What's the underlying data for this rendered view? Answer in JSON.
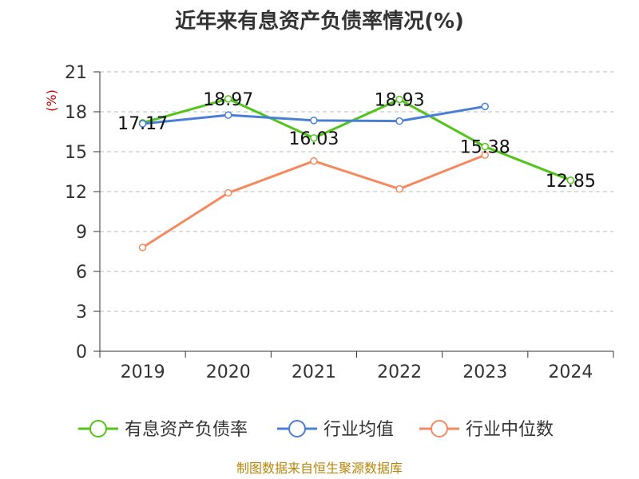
{
  "chart_data": {
    "type": "line",
    "title": "近年来有息资产负债率情况(%)",
    "ylabel": "(%)",
    "xlabel": "",
    "categories": [
      "2019",
      "2020",
      "2021",
      "2022",
      "2023",
      "2024"
    ],
    "ylim": [
      0,
      21
    ],
    "yticks": [
      0,
      3,
      6,
      9,
      12,
      15,
      18,
      21
    ],
    "grid": true,
    "legend_position": "bottom",
    "series": [
      {
        "name": "有息资产负债率",
        "color": "#52c41a",
        "values": [
          17.17,
          18.97,
          16.03,
          18.93,
          15.38,
          12.85
        ],
        "show_labels": true
      },
      {
        "name": "行业均值",
        "color": "#4a7fd8",
        "values": [
          17.1,
          17.75,
          17.35,
          17.3,
          18.4,
          null
        ],
        "show_labels": false
      },
      {
        "name": "行业中位数",
        "color": "#f4895f",
        "values": [
          7.8,
          11.9,
          14.3,
          12.2,
          14.75,
          null
        ],
        "show_labels": false
      }
    ],
    "source": "制图数据来自恒生聚源数据库"
  }
}
